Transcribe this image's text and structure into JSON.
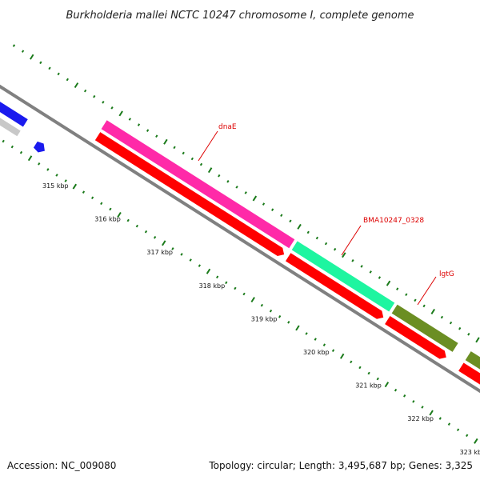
{
  "title": "Burkholderia mallei NCTC 10247 chromosome I, complete genome",
  "footer": {
    "accession": "Accession: NC_009080",
    "topology": "Topology: circular; Length: 3,495,687 bp; Genes: 3,325"
  },
  "ticks": [
    "315 kbp",
    "316 kbp",
    "317 kbp",
    "318 kbp",
    "319 kbp",
    "320 kbp",
    "321 kbp",
    "322 kbp",
    "323 kbp"
  ],
  "genes": [
    {
      "name": "dnaE",
      "color": "#ff2aa8"
    },
    {
      "name": "BMA10247_0328",
      "color": "#1ef5a0"
    },
    {
      "name": "lgtG",
      "color": "#6b8e23"
    }
  ],
  "colors": {
    "backbone": "#808080",
    "cds": "#ff0000",
    "left_gene": "#1a1aee",
    "left_gene_grey": "#c8c8c8",
    "tick": "#1a7a1a",
    "label_line": "#dd0000"
  }
}
